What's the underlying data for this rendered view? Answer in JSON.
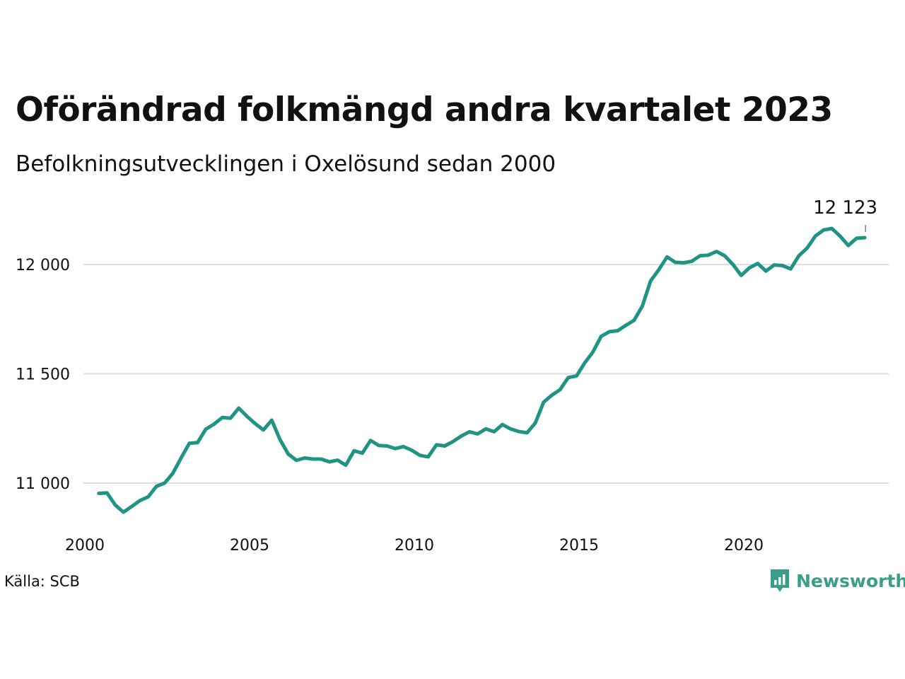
{
  "header": {
    "title": "Oförändrad folkmängd andra kvartalet 2023",
    "subtitle": "Befolkningsutvecklingen i Oxelösund sedan 2000"
  },
  "footer": {
    "source": "Källa: SCB",
    "brand": "Newsworthy",
    "brand_icon": "bar-chart-speech-bubble-icon",
    "brand_color": "#3a9e8a"
  },
  "chart_data": {
    "type": "line",
    "line_color": "#1f9483",
    "grid": true,
    "ylim": [
      10800,
      12250
    ],
    "y_ticks": [
      11000,
      11500,
      12000
    ],
    "y_tick_labels": [
      "11 000",
      "11 500",
      "12 000"
    ],
    "x_ticks": [
      2000,
      2005,
      2010,
      2015,
      2020
    ],
    "x_tick_labels": [
      "2000",
      "2005",
      "2010",
      "2015",
      "2020"
    ],
    "xlim": [
      2000,
      2024.4
    ],
    "end_label": "12 123",
    "series": [
      {
        "x": [
          2000.25,
          2000.5,
          2000.75,
          2001.0,
          2001.25,
          2001.5,
          2001.75,
          2002.0,
          2002.25,
          2002.5,
          2002.75,
          2003.0,
          2003.25,
          2003.5,
          2003.75,
          2004.0,
          2004.25,
          2004.5,
          2004.75,
          2005.0,
          2005.25,
          2005.5,
          2005.75,
          2006.0,
          2006.25,
          2006.5,
          2006.75,
          2007.0,
          2007.25,
          2007.5,
          2007.75,
          2008.0,
          2008.25,
          2008.5,
          2008.75,
          2009.0,
          2009.25,
          2009.5,
          2009.75,
          2010.0,
          2010.25,
          2010.5,
          2010.75,
          2011.0,
          2011.25,
          2011.5,
          2011.75,
          2012.0,
          2012.25,
          2012.5,
          2012.75,
          2013.0,
          2013.25,
          2013.5,
          2013.75,
          2014.0,
          2014.25,
          2014.5,
          2014.75,
          2015.0,
          2015.25,
          2015.5,
          2015.75,
          2016.0,
          2016.25,
          2016.5,
          2016.75,
          2017.0,
          2017.25,
          2017.5,
          2017.75,
          2018.0,
          2018.25,
          2018.5,
          2018.75,
          2019.0,
          2019.25,
          2019.5,
          2019.75,
          2020.0,
          2020.25,
          2020.5,
          2020.75,
          2021.0,
          2021.25,
          2021.5,
          2021.75,
          2022.0,
          2022.25,
          2022.5,
          2022.75,
          2023.0,
          2023.25,
          2023.5
        ],
        "values": [
          10953,
          10955,
          10900,
          10867,
          10893,
          10920,
          10937,
          10985,
          11000,
          11045,
          11115,
          11182,
          11185,
          11247,
          11270,
          11300,
          11297,
          11343,
          11305,
          11272,
          11243,
          11288,
          11200,
          11133,
          11104,
          11115,
          11110,
          11110,
          11097,
          11105,
          11082,
          11148,
          11137,
          11195,
          11172,
          11170,
          11158,
          11167,
          11150,
          11127,
          11120,
          11175,
          11170,
          11190,
          11215,
          11235,
          11225,
          11248,
          11235,
          11268,
          11248,
          11236,
          11230,
          11275,
          11370,
          11402,
          11427,
          11483,
          11490,
          11550,
          11600,
          11672,
          11693,
          11697,
          11722,
          11745,
          11810,
          11925,
          11977,
          12035,
          12010,
          12008,
          12015,
          12040,
          12043,
          12060,
          12040,
          12000,
          11950,
          11985,
          12005,
          11970,
          11998,
          11995,
          11980,
          12040,
          12075,
          12130,
          12158,
          12165,
          12130,
          12087,
          12120,
          12123
        ]
      }
    ]
  }
}
